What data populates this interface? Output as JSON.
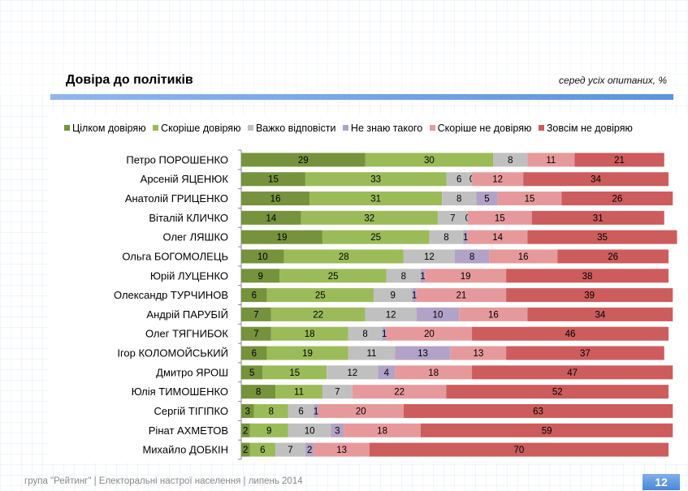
{
  "header": {
    "title": "Довіра до політиків",
    "subtitle": "серед усіх опитаних, %"
  },
  "footer": {
    "text": "група \"Рейтинг\"  |   Електоральні настрої населення  |  липень 2014",
    "page_number": "12"
  },
  "chart_data": {
    "type": "bar",
    "orientation": "horizontal",
    "stacked": true,
    "title": "Довіра до політиків",
    "xlim": [
      0,
      100
    ],
    "legend_position": "top",
    "categories": [
      "Петро ПОРОШЕНКО",
      "Арсеній ЯЦЕНЮК",
      "Анатолій ГРИЦЕНКО",
      "Віталій КЛИЧКО",
      "Олег ЛЯШКО",
      "Ольга БОГОМОЛЕЦЬ",
      "Юрій ЛУЦЕНКО",
      "Олександр ТУРЧИНОВ",
      "Андрій ПАРУБІЙ",
      "Олег ТЯГНИБОК",
      "Ігор КОЛОМОЙСЬКИЙ",
      "Дмитро ЯРОШ",
      "Юлія ТИМОШЕНКО",
      "Сергій ТІГІПКО",
      "Рінат АХМЕТОВ",
      "Михайло ДОБКІН"
    ],
    "series": [
      {
        "name": "Цілком довіряю",
        "color": "#76923c",
        "values": [
          29,
          15,
          16,
          14,
          19,
          10,
          9,
          6,
          7,
          7,
          6,
          5,
          8,
          3,
          2,
          2
        ]
      },
      {
        "name": "Скоріше довіряю",
        "color": "#9bbb59",
        "values": [
          30,
          33,
          31,
          32,
          25,
          28,
          25,
          25,
          22,
          18,
          19,
          15,
          11,
          8,
          9,
          6
        ]
      },
      {
        "name": "Важко відповісти",
        "color": "#c0c0c0",
        "values": [
          8,
          6,
          8,
          7,
          8,
          12,
          8,
          9,
          12,
          8,
          11,
          12,
          7,
          6,
          10,
          7
        ]
      },
      {
        "name": "Не знаю такого",
        "color": "#b3a2c7",
        "values": [
          0,
          0,
          5,
          0,
          1,
          8,
          1,
          1,
          10,
          1,
          13,
          4,
          0,
          1,
          3,
          2
        ]
      },
      {
        "name": "Скоріше не довіряю",
        "color": "#e6999b",
        "values": [
          11,
          12,
          15,
          15,
          14,
          16,
          19,
          21,
          16,
          20,
          13,
          18,
          22,
          20,
          18,
          13
        ]
      },
      {
        "name": "Зовсім не довіряю",
        "color": "#cd5c5c",
        "values": [
          21,
          34,
          26,
          31,
          35,
          26,
          38,
          39,
          34,
          46,
          37,
          47,
          52,
          63,
          59,
          70
        ]
      }
    ],
    "show_labels": [
      [
        true,
        true,
        true,
        false,
        true,
        true
      ],
      [
        true,
        true,
        true,
        true,
        true,
        true
      ],
      [
        true,
        true,
        true,
        true,
        true,
        true
      ],
      [
        true,
        true,
        true,
        true,
        true,
        true
      ],
      [
        true,
        true,
        true,
        true,
        true,
        true
      ],
      [
        true,
        true,
        true,
        true,
        true,
        true
      ],
      [
        true,
        true,
        true,
        true,
        true,
        true
      ],
      [
        true,
        true,
        true,
        true,
        true,
        true
      ],
      [
        true,
        true,
        true,
        true,
        true,
        true
      ],
      [
        true,
        true,
        true,
        true,
        true,
        true
      ],
      [
        true,
        true,
        true,
        true,
        true,
        true
      ],
      [
        true,
        true,
        true,
        true,
        true,
        true
      ],
      [
        true,
        true,
        true,
        false,
        true,
        true
      ],
      [
        true,
        true,
        true,
        true,
        true,
        true
      ],
      [
        true,
        true,
        true,
        true,
        true,
        true
      ],
      [
        true,
        true,
        true,
        true,
        true,
        true
      ]
    ]
  }
}
